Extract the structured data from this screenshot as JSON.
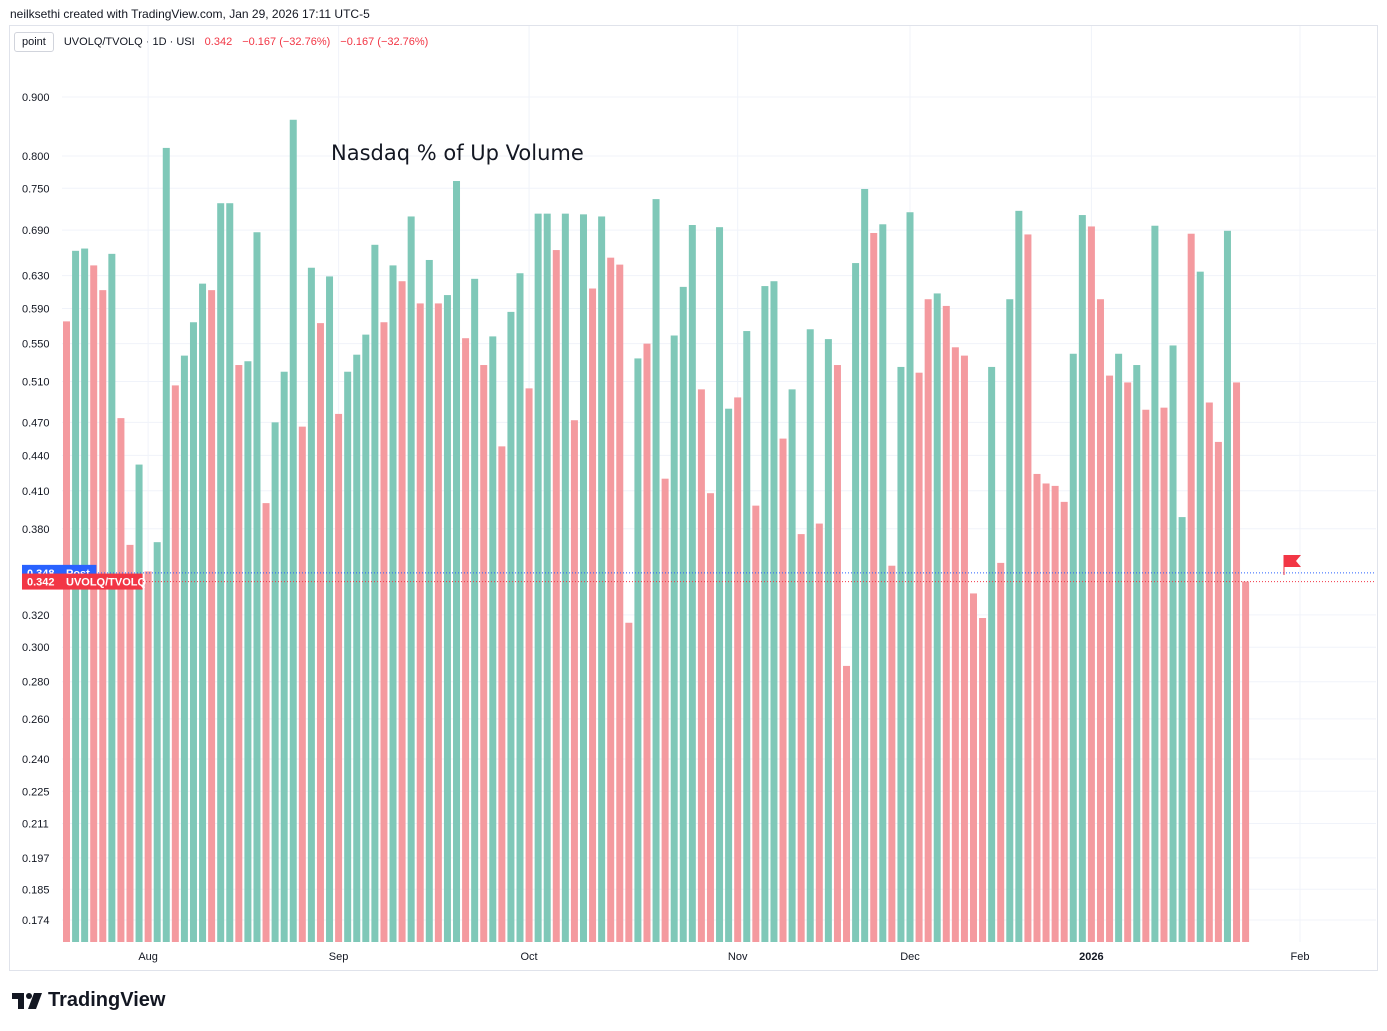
{
  "header": {
    "text": "neilksethi created with TradingView.com, Jan 29, 2026 17:11 UTC-5"
  },
  "legend": {
    "mode_label": "point",
    "symbol": "UVOLQ/TVOLQ · 1D · USI",
    "value": "0.342",
    "change1": "−0.167 (−32.76%)",
    "change2": "−0.167 (−32.76%)"
  },
  "annotation": "Nasdaq % of Up Volume",
  "price_labels": [
    {
      "value": "0.348",
      "tag": "Post",
      "color": "#2962ff"
    },
    {
      "value": "0.342",
      "tag": "UVOLQ/TVOLQ",
      "color": "#f23645"
    }
  ],
  "brand": {
    "name": "TradingView"
  },
  "colors": {
    "up": "#7fc8b8",
    "down": "#f49a9f",
    "post_line": "#2962ff",
    "last_line": "#f23645",
    "flag": "#f23645"
  },
  "chart_data": {
    "type": "bar",
    "title": "Nasdaq % of Up Volume",
    "scale": "log",
    "ylim": [
      0.165,
      1.0
    ],
    "y_ticks": [
      "0.900",
      "0.800",
      "0.750",
      "0.690",
      "0.630",
      "0.590",
      "0.550",
      "0.510",
      "0.470",
      "0.440",
      "0.410",
      "0.380",
      "0.320",
      "0.300",
      "0.280",
      "0.260",
      "0.240",
      "0.225",
      "0.211",
      "0.197",
      "0.185",
      "0.174"
    ],
    "x_ticks": [
      {
        "label": "Aug",
        "bar_index": 9
      },
      {
        "label": "Sep",
        "bar_index": 30
      },
      {
        "label": "Oct",
        "bar_index": 51
      },
      {
        "label": "Nov",
        "bar_index": 74
      },
      {
        "label": "Dec",
        "bar_index": 93
      },
      {
        "label": "2026",
        "bar_index": 113
      },
      {
        "label": "Feb",
        "bar_index": 136
      }
    ],
    "grid": true,
    "values": [
      0.575,
      0.662,
      0.665,
      0.643,
      0.612,
      0.658,
      0.474,
      0.368,
      0.432,
      0.349,
      0.37,
      0.813,
      0.506,
      0.537,
      0.574,
      0.62,
      0.612,
      0.728,
      0.728,
      0.527,
      0.531,
      0.687,
      0.4,
      0.47,
      0.52,
      0.86,
      0.466,
      0.64,
      0.573,
      0.629,
      0.478,
      0.52,
      0.538,
      0.56,
      0.67,
      0.574,
      0.643,
      0.623,
      0.709,
      0.596,
      0.65,
      0.596,
      0.606,
      0.761,
      0.556,
      0.626,
      0.527,
      0.558,
      0.448,
      0.586,
      0.633,
      0.503,
      0.713,
      0.713,
      0.663,
      0.713,
      0.472,
      0.712,
      0.614,
      0.709,
      0.653,
      0.644,
      0.315,
      0.534,
      0.55,
      0.734,
      0.42,
      0.559,
      0.616,
      0.697,
      0.502,
      0.408,
      0.694,
      0.483,
      0.494,
      0.564,
      0.398,
      0.617,
      0.623,
      0.455,
      0.502,
      0.376,
      0.566,
      0.384,
      0.555,
      0.527,
      0.289,
      0.646,
      0.749,
      0.686,
      0.698,
      0.353,
      0.525,
      0.715,
      0.519,
      0.601,
      0.608,
      0.593,
      0.546,
      0.537,
      0.334,
      0.318,
      0.525,
      0.355,
      0.601,
      0.717,
      0.684,
      0.424,
      0.416,
      0.414,
      0.401,
      0.539,
      0.711,
      0.695,
      0.601,
      0.516,
      0.539,
      0.509,
      0.527,
      0.482,
      0.696,
      0.484,
      0.548,
      0.389,
      0.685,
      0.635,
      0.489,
      0.452,
      0.689,
      0.509,
      0.342
    ],
    "colors_up": [
      false,
      true,
      true,
      false,
      false,
      true,
      false,
      false,
      true,
      false,
      true,
      true,
      false,
      true,
      true,
      true,
      false,
      true,
      true,
      false,
      true,
      true,
      false,
      true,
      true,
      true,
      false,
      true,
      false,
      true,
      false,
      true,
      true,
      true,
      true,
      false,
      true,
      false,
      true,
      false,
      true,
      false,
      true,
      true,
      false,
      true,
      false,
      true,
      false,
      true,
      true,
      false,
      true,
      true,
      false,
      true,
      false,
      true,
      false,
      true,
      false,
      false,
      false,
      true,
      false,
      true,
      false,
      true,
      true,
      true,
      false,
      false,
      true,
      true,
      false,
      true,
      false,
      true,
      true,
      false,
      true,
      false,
      true,
      false,
      true,
      false,
      false,
      true,
      true,
      false,
      true,
      false,
      true,
      true,
      false,
      false,
      true,
      false,
      false,
      false,
      false,
      false,
      true,
      false,
      true,
      true,
      false,
      false,
      false,
      false,
      false,
      true,
      true,
      false,
      false,
      false,
      true,
      false,
      true,
      false,
      true,
      false,
      true,
      true,
      false,
      true,
      false,
      false,
      true,
      false,
      false
    ]
  }
}
